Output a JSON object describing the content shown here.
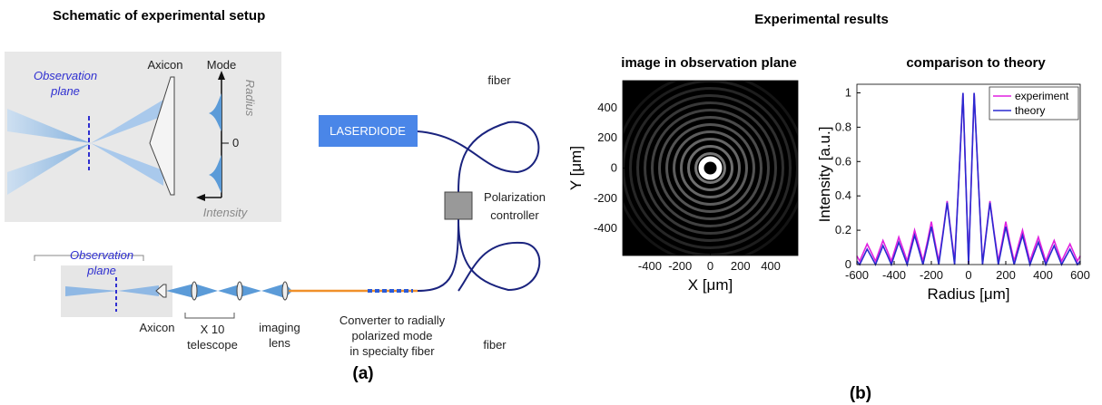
{
  "headings": {
    "setup": "Schematic of experimental setup",
    "results": "Experimental results"
  },
  "panel_labels": {
    "a": "(a)",
    "b": "(b)"
  },
  "inset": {
    "observation": [
      "Observation",
      "plane"
    ],
    "axicon": "Axicon",
    "mode": "Mode",
    "radius": "Radius",
    "zero": "0",
    "intensity": "Intensity"
  },
  "setup": {
    "laser": "LASERDIODE",
    "fiber_top": "fiber",
    "fiber_bottom": "fiber",
    "polarization": [
      "Polarization",
      "controller"
    ],
    "observation": [
      "Observation",
      "plane"
    ],
    "axicon": "Axicon",
    "telescope": [
      "X 10",
      "telescope"
    ],
    "lens": [
      "imaging",
      "lens"
    ],
    "converter": [
      "Converter to radially",
      "polarized mode",
      "in specialty fiber"
    ]
  },
  "chart_data": [
    {
      "type": "image",
      "title": "image in observation plane",
      "xlabel": "X [μm]",
      "ylabel": "Y [μm]",
      "xlim": [
        -580,
        580
      ],
      "ylim": [
        -580,
        580
      ],
      "xticks": [
        -400,
        -200,
        0,
        200,
        400
      ],
      "yticks": [
        -400,
        -200,
        0,
        200,
        400
      ]
    },
    {
      "type": "line",
      "title": "comparison to theory",
      "xlabel": "Radius [μm]",
      "ylabel": "Intensity [a.u.]",
      "xlim": [
        -600,
        600
      ],
      "ylim": [
        0,
        1.05
      ],
      "xticks": [
        -600,
        -400,
        -200,
        0,
        200,
        400,
        600
      ],
      "yticks": [
        0,
        0.2,
        0.4,
        0.6,
        0.8,
        1
      ],
      "legend": "upper-right",
      "x": [
        -600,
        -585,
        -565,
        -545,
        -522,
        -500,
        -480,
        -460,
        -437,
        -415,
        -395,
        -375,
        -352,
        -330,
        -310,
        -290,
        -267,
        -245,
        -222,
        -200,
        -180,
        -160,
        -137,
        -115,
        -95,
        -75,
        -52,
        -30,
        -15,
        0,
        15,
        30,
        52,
        75,
        95,
        115,
        137,
        160,
        180,
        200,
        222,
        245,
        267,
        290,
        310,
        330,
        352,
        375,
        395,
        415,
        437,
        460,
        480,
        500,
        522,
        545,
        565,
        585,
        600
      ],
      "series": [
        {
          "name": "experiment",
          "color": "#e020e0",
          "values": [
            0.05,
            0.02,
            0.07,
            0.12,
            0.07,
            0.02,
            0.08,
            0.14,
            0.08,
            0.02,
            0.09,
            0.16,
            0.09,
            0.02,
            0.11,
            0.2,
            0.11,
            0.02,
            0.13,
            0.25,
            0.13,
            0.02,
            0.19,
            0.37,
            0.19,
            0.02,
            0.5,
            1,
            0.5,
            0.01,
            0.5,
            1,
            0.5,
            0.01,
            0.19,
            0.37,
            0.19,
            0.02,
            0.13,
            0.25,
            0.13,
            0.02,
            0.11,
            0.2,
            0.11,
            0.02,
            0.09,
            0.16,
            0.09,
            0.02,
            0.08,
            0.14,
            0.08,
            0.02,
            0.07,
            0.12,
            0.07,
            0.02,
            0.05
          ]
        },
        {
          "name": "theory",
          "color": "#2a2ad0",
          "values": [
            0.02,
            0,
            0.045,
            0.09,
            0.045,
            0,
            0.055,
            0.11,
            0.055,
            0,
            0.065,
            0.13,
            0.065,
            0,
            0.085,
            0.17,
            0.085,
            0,
            0.11,
            0.22,
            0.11,
            0,
            0.18,
            0.36,
            0.18,
            0,
            0.5,
            1,
            0.5,
            0,
            0.5,
            1,
            0.5,
            0,
            0.18,
            0.36,
            0.18,
            0,
            0.11,
            0.22,
            0.11,
            0,
            0.085,
            0.17,
            0.085,
            0,
            0.065,
            0.13,
            0.065,
            0,
            0.055,
            0.11,
            0.055,
            0,
            0.045,
            0.09,
            0.045,
            0,
            0.02
          ]
        }
      ]
    }
  ]
}
